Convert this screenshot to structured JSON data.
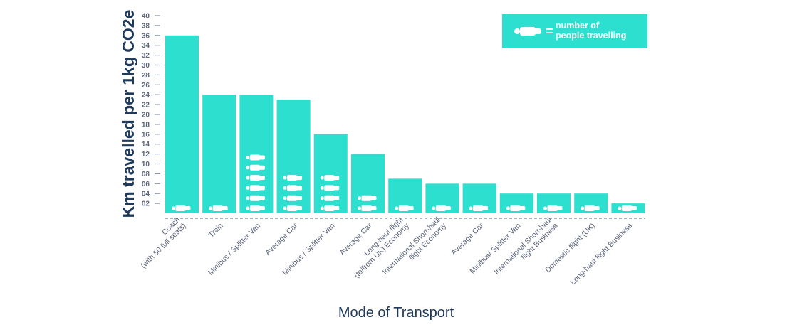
{
  "chart_data": {
    "type": "bar",
    "title": "",
    "xlabel": "Mode of Transport",
    "ylabel": "Km travelled per 1kg CO2e",
    "ylim": [
      0,
      40
    ],
    "yticks": [
      "02",
      "04",
      "06",
      "08",
      "10",
      "12",
      "14",
      "16",
      "18",
      "20",
      "22",
      "24",
      "26",
      "28",
      "30",
      "32",
      "34",
      "36",
      "38",
      "40"
    ],
    "grid": false,
    "bar_color": "#2ddfcf",
    "categories": [
      [
        "Coach",
        "(with 50 full seats)"
      ],
      [
        "Train"
      ],
      [
        "Minibus / Splitter Van"
      ],
      [
        "Average Car"
      ],
      [
        "Minibus / Splitter Van"
      ],
      [
        "Average Car"
      ],
      [
        "Long-haul flight",
        "(to/from UK) Economy"
      ],
      [
        "International Short-haul",
        "flight Economy"
      ],
      [
        "Average Car"
      ],
      [
        "Minibus/ Splitter Van"
      ],
      [
        "International Short-haul",
        "flight Business"
      ],
      [
        "Domestic flight (UK)"
      ],
      [
        "Long-haul flight Business"
      ]
    ],
    "values": [
      36,
      24,
      24,
      23,
      16,
      12,
      7,
      6,
      6,
      4,
      4,
      4,
      2
    ],
    "people_travelling": [
      1,
      1,
      6,
      4,
      4,
      2,
      1,
      1,
      1,
      1,
      1,
      1,
      1
    ],
    "legend": {
      "position": "top-right",
      "icon": "person-icon",
      "equals": "=",
      "text_line1": "number of",
      "text_line2": "people travelling"
    }
  }
}
